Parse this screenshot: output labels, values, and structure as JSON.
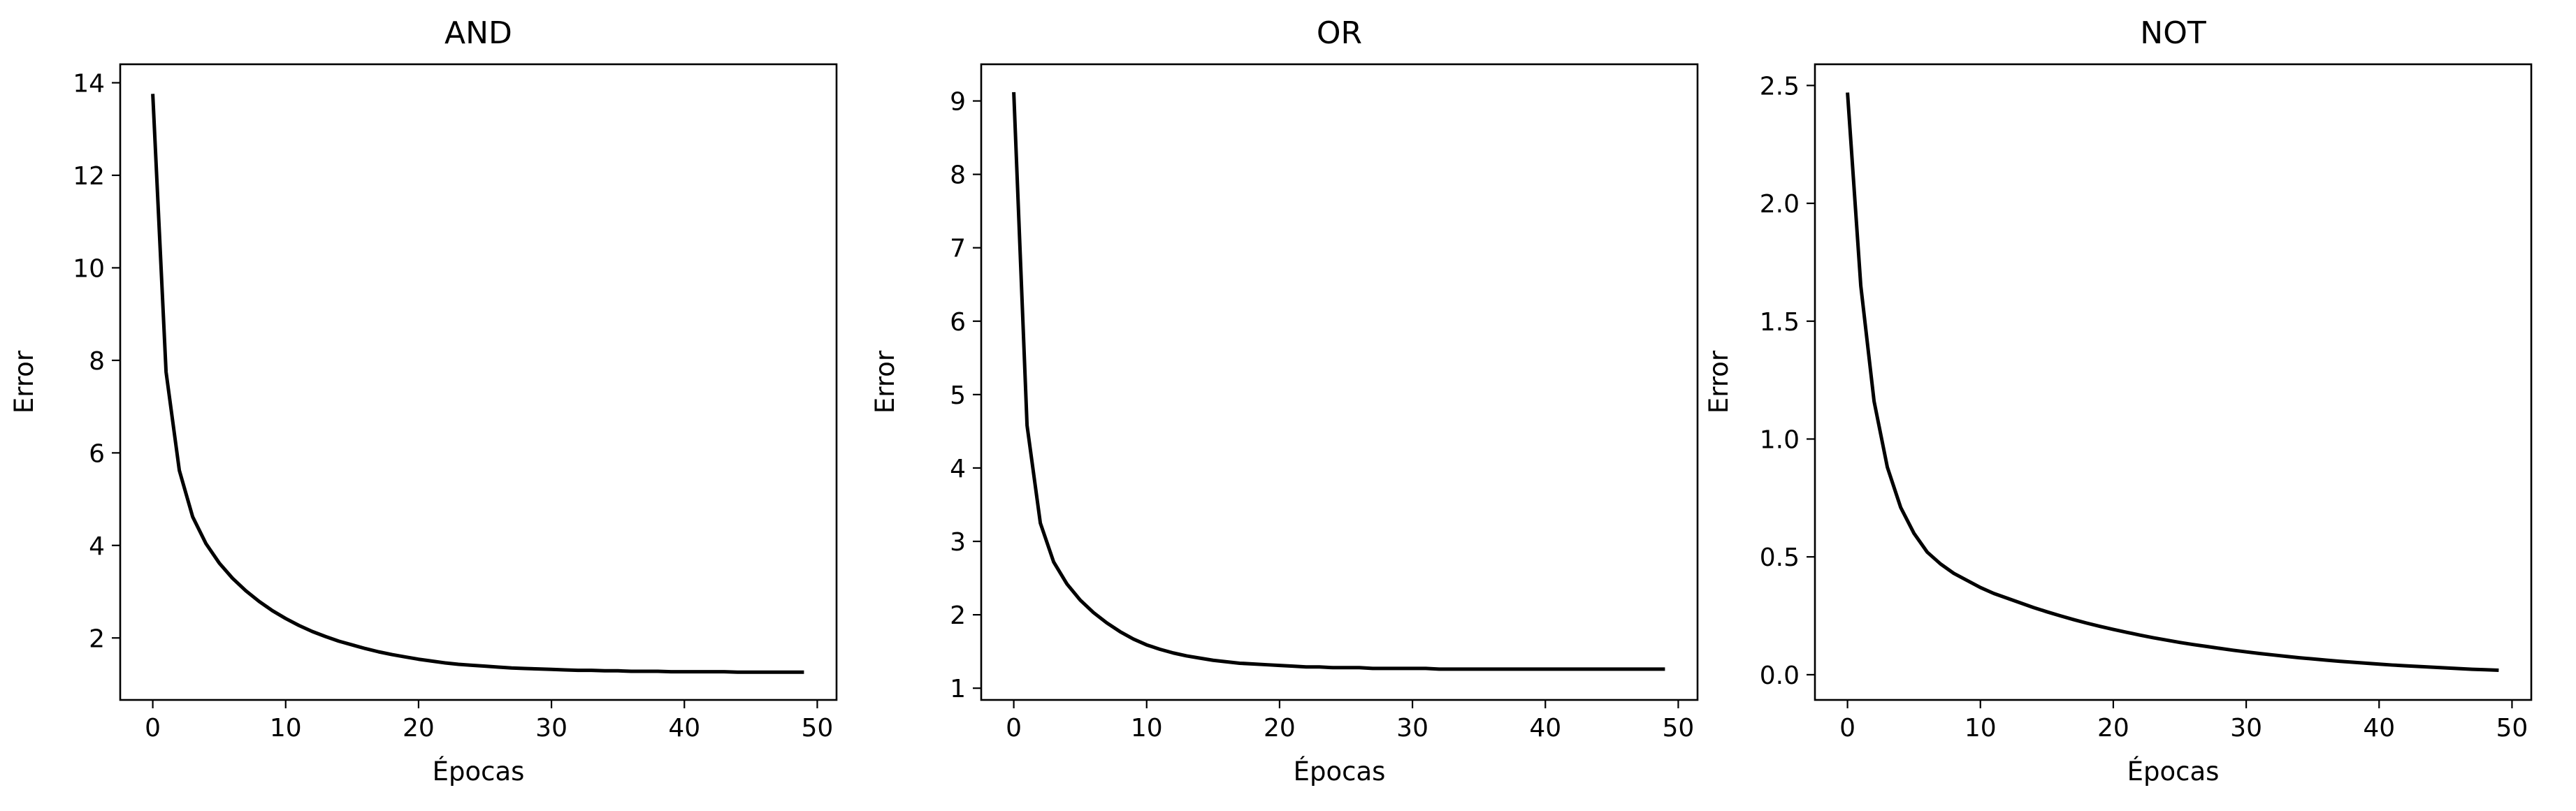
{
  "chart_data": [
    {
      "type": "line",
      "title": "AND",
      "xlabel": "Épocas",
      "ylabel": "Error",
      "xlim": [
        -2.45,
        51.45
      ],
      "ylim": [
        0.66,
        14.4
      ],
      "xticks": [
        0,
        10,
        20,
        30,
        40,
        50
      ],
      "yticks": [
        2,
        4,
        6,
        8,
        10,
        12,
        14
      ],
      "ytick_labels": [
        "2",
        "4",
        "6",
        "8",
        "10",
        "12",
        "14"
      ],
      "grid": false,
      "color": "#000000",
      "series": [
        {
          "x": [
            0,
            1,
            2,
            3,
            4,
            5,
            6,
            7,
            8,
            9,
            10,
            11,
            12,
            13,
            14,
            15,
            16,
            17,
            18,
            19,
            20,
            21,
            22,
            23,
            24,
            25,
            26,
            27,
            28,
            29,
            30,
            31,
            32,
            33,
            34,
            35,
            36,
            37,
            38,
            39,
            40,
            41,
            42,
            43,
            44,
            45,
            46,
            47,
            48,
            49
          ],
          "values": [
            13.76,
            7.75,
            5.62,
            4.62,
            4.04,
            3.62,
            3.29,
            3.02,
            2.79,
            2.59,
            2.42,
            2.27,
            2.14,
            2.03,
            1.93,
            1.85,
            1.77,
            1.7,
            1.64,
            1.59,
            1.54,
            1.5,
            1.46,
            1.43,
            1.41,
            1.39,
            1.37,
            1.35,
            1.34,
            1.33,
            1.32,
            1.31,
            1.3,
            1.3,
            1.29,
            1.29,
            1.28,
            1.28,
            1.28,
            1.27,
            1.27,
            1.27,
            1.27,
            1.27,
            1.26,
            1.26,
            1.26,
            1.26,
            1.26,
            1.26
          ]
        }
      ]
    },
    {
      "type": "line",
      "title": "OR",
      "xlabel": "Épocas",
      "ylabel": "Error",
      "xlim": [
        -2.45,
        51.45
      ],
      "ylim": [
        0.84,
        9.5
      ],
      "xticks": [
        0,
        10,
        20,
        30,
        40,
        50
      ],
      "yticks": [
        1,
        2,
        3,
        4,
        5,
        6,
        7,
        8,
        9
      ],
      "ytick_labels": [
        "1",
        "2",
        "3",
        "4",
        "5",
        "6",
        "7",
        "8",
        "9"
      ],
      "grid": false,
      "color": "#000000",
      "series": [
        {
          "x": [
            0,
            1,
            2,
            3,
            4,
            5,
            6,
            7,
            8,
            9,
            10,
            11,
            12,
            13,
            14,
            15,
            16,
            17,
            18,
            19,
            20,
            21,
            22,
            23,
            24,
            25,
            26,
            27,
            28,
            29,
            30,
            31,
            32,
            33,
            34,
            35,
            36,
            37,
            38,
            39,
            40,
            41,
            42,
            43,
            44,
            45,
            46,
            47,
            48,
            49
          ],
          "values": [
            9.12,
            4.58,
            3.25,
            2.72,
            2.42,
            2.2,
            2.03,
            1.89,
            1.77,
            1.67,
            1.59,
            1.53,
            1.48,
            1.44,
            1.41,
            1.38,
            1.36,
            1.34,
            1.33,
            1.32,
            1.31,
            1.3,
            1.29,
            1.29,
            1.28,
            1.28,
            1.28,
            1.27,
            1.27,
            1.27,
            1.27,
            1.27,
            1.26,
            1.26,
            1.26,
            1.26,
            1.26,
            1.26,
            1.26,
            1.26,
            1.26,
            1.26,
            1.26,
            1.26,
            1.26,
            1.26,
            1.26,
            1.26,
            1.26,
            1.26
          ]
        }
      ]
    },
    {
      "type": "line",
      "title": "NOT",
      "xlabel": "Épocas",
      "ylabel": "Error",
      "xlim": [
        -2.45,
        51.45
      ],
      "ylim": [
        -0.107,
        2.59
      ],
      "xticks": [
        0,
        10,
        20,
        30,
        40,
        50
      ],
      "yticks": [
        0.0,
        0.5,
        1.0,
        1.5,
        2.0,
        2.5
      ],
      "ytick_labels": [
        "0.0",
        "0.5",
        "1.0",
        "1.5",
        "2.0",
        "2.5"
      ],
      "grid": false,
      "color": "#000000",
      "series": [
        {
          "x": [
            0,
            1,
            2,
            3,
            4,
            5,
            6,
            7,
            8,
            9,
            10,
            11,
            12,
            13,
            14,
            15,
            16,
            17,
            18,
            19,
            20,
            21,
            22,
            23,
            24,
            25,
            26,
            27,
            28,
            29,
            30,
            31,
            32,
            33,
            34,
            35,
            36,
            37,
            38,
            39,
            40,
            41,
            42,
            43,
            44,
            45,
            46,
            47,
            48,
            49
          ],
          "values": [
            2.47,
            1.65,
            1.16,
            0.88,
            0.71,
            0.6,
            0.52,
            0.47,
            0.43,
            0.4,
            0.37,
            0.345,
            0.325,
            0.305,
            0.285,
            0.267,
            0.25,
            0.234,
            0.219,
            0.205,
            0.192,
            0.18,
            0.168,
            0.157,
            0.147,
            0.137,
            0.128,
            0.12,
            0.112,
            0.104,
            0.097,
            0.09,
            0.084,
            0.078,
            0.072,
            0.067,
            0.062,
            0.057,
            0.053,
            0.049,
            0.045,
            0.041,
            0.038,
            0.035,
            0.032,
            0.029,
            0.026,
            0.023,
            0.021,
            0.019
          ]
        }
      ]
    }
  ]
}
